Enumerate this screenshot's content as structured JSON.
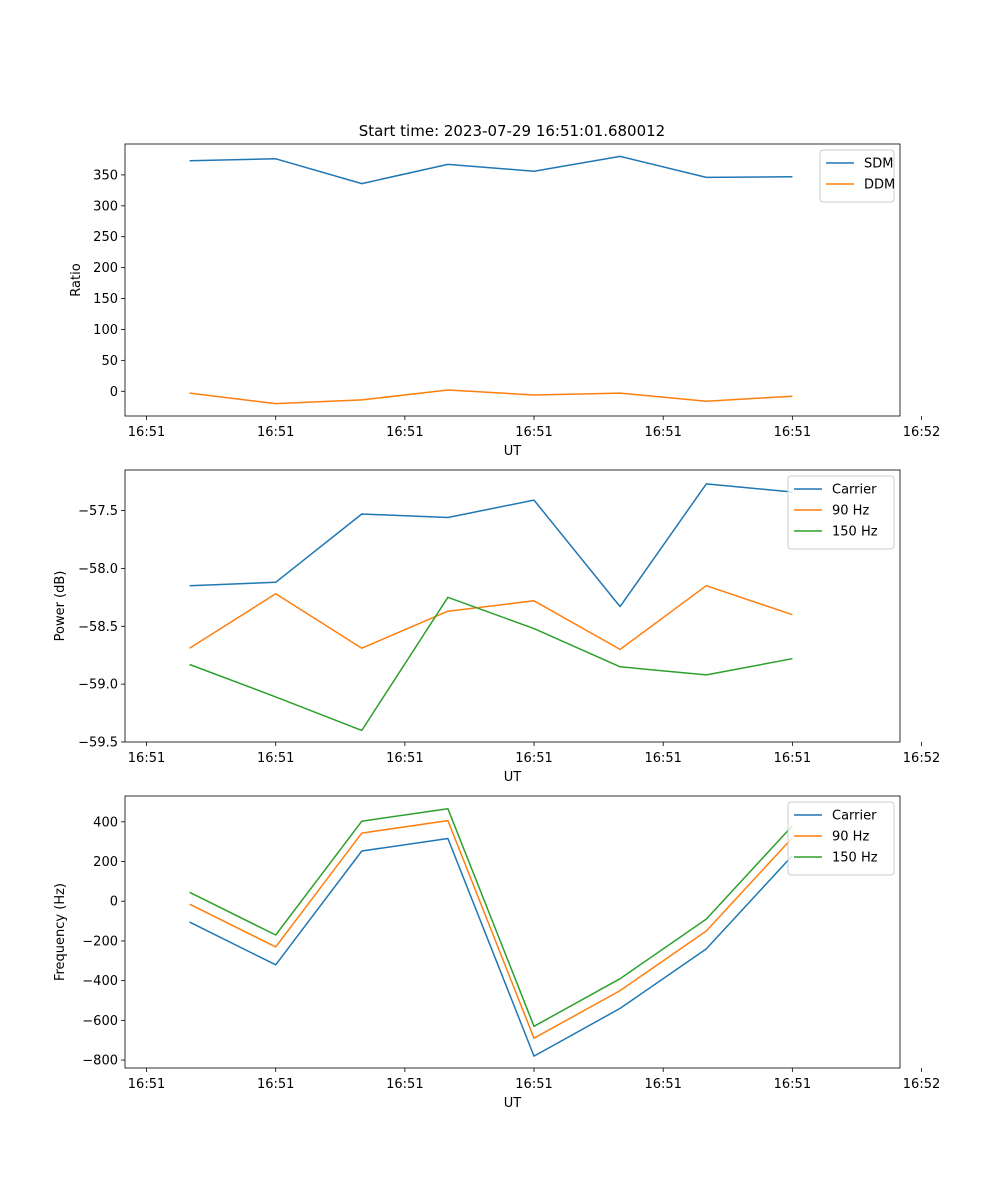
{
  "figure_title": "Start time: 2023-07-29 16:51:01.680012",
  "chart_data": [
    {
      "type": "line",
      "title": "Start time: 2023-07-29 16:51:01.680012",
      "xlabel": "UT",
      "ylabel": "Ratio",
      "x": [
        1,
        2,
        3,
        4,
        5,
        6,
        7,
        8
      ],
      "xlim": [
        0.25,
        9.25
      ],
      "xticks": [
        0.5,
        2,
        3.5,
        5,
        6.5,
        8,
        9.5
      ],
      "xtick_labels": [
        "16:51",
        "16:51",
        "16:51",
        "16:51",
        "16:51",
        "16:51",
        "16:52"
      ],
      "ylim": [
        -40,
        400
      ],
      "yticks": [
        0,
        50,
        100,
        150,
        200,
        250,
        300,
        350
      ],
      "ytick_labels": [
        "0",
        "50",
        "100",
        "150",
        "200",
        "250",
        "300",
        "350"
      ],
      "legend_position": "top-right",
      "series": [
        {
          "name": "SDM",
          "color": "#1f77b4",
          "values": [
            373,
            376,
            336,
            367,
            356,
            380,
            346,
            347
          ]
        },
        {
          "name": "DDM",
          "color": "#ff7f0e",
          "values": [
            -3,
            -20,
            -14,
            2,
            -6,
            -3,
            -16,
            -8
          ]
        }
      ]
    },
    {
      "type": "line",
      "title": "",
      "xlabel": "UT",
      "ylabel": "Power (dB)",
      "x": [
        1,
        2,
        3,
        4,
        5,
        6,
        7,
        8
      ],
      "xlim": [
        0.25,
        9.25
      ],
      "xticks": [
        0.5,
        2,
        3.5,
        5,
        6.5,
        8,
        9.5
      ],
      "xtick_labels": [
        "16:51",
        "16:51",
        "16:51",
        "16:51",
        "16:51",
        "16:51",
        "16:52"
      ],
      "ylim": [
        -59.5,
        -57.15
      ],
      "yticks": [
        -59.5,
        -59.0,
        -58.5,
        -58.0,
        -57.5
      ],
      "ytick_labels": [
        "−59.5",
        "−59.0",
        "−58.5",
        "−58.0",
        "−57.5"
      ],
      "legend_position": "top-right",
      "series": [
        {
          "name": "Carrier",
          "color": "#1f77b4",
          "values": [
            -58.15,
            -58.12,
            -57.53,
            -57.56,
            -57.41,
            -58.33,
            -57.27,
            -57.34
          ]
        },
        {
          "name": "90 Hz",
          "color": "#ff7f0e",
          "values": [
            -58.69,
            -58.22,
            -58.69,
            -58.37,
            -58.28,
            -58.7,
            -58.15,
            -58.4
          ]
        },
        {
          "name": "150 Hz",
          "color": "#2ca02c",
          "values": [
            -58.83,
            -59.11,
            -59.4,
            -58.25,
            -58.52,
            -58.85,
            -58.92,
            -58.78
          ]
        }
      ]
    },
    {
      "type": "line",
      "title": "",
      "xlabel": "UT",
      "ylabel": "Frequency (Hz)",
      "x": [
        1,
        2,
        3,
        4,
        5,
        6,
        7,
        8
      ],
      "xlim": [
        0.25,
        9.25
      ],
      "xticks": [
        0.5,
        2,
        3.5,
        5,
        6.5,
        8,
        9.5
      ],
      "xtick_labels": [
        "16:51",
        "16:51",
        "16:51",
        "16:51",
        "16:51",
        "16:51",
        "16:52"
      ],
      "ylim": [
        -840,
        530
      ],
      "yticks": [
        -800,
        -600,
        -400,
        -200,
        0,
        200,
        400
      ],
      "ytick_labels": [
        "−800",
        "−600",
        "−400",
        "−200",
        "0",
        "200",
        "400"
      ],
      "legend_position": "top-right",
      "series": [
        {
          "name": "Carrier",
          "color": "#1f77b4",
          "values": [
            -105,
            -320,
            253,
            316,
            -780,
            -540,
            -240,
            230
          ]
        },
        {
          "name": "90 Hz",
          "color": "#ff7f0e",
          "values": [
            -15,
            -230,
            343,
            406,
            -690,
            -450,
            -150,
            320
          ]
        },
        {
          "name": "150 Hz",
          "color": "#2ca02c",
          "values": [
            45,
            -170,
            403,
            466,
            -630,
            -390,
            -90,
            380
          ]
        }
      ]
    }
  ]
}
